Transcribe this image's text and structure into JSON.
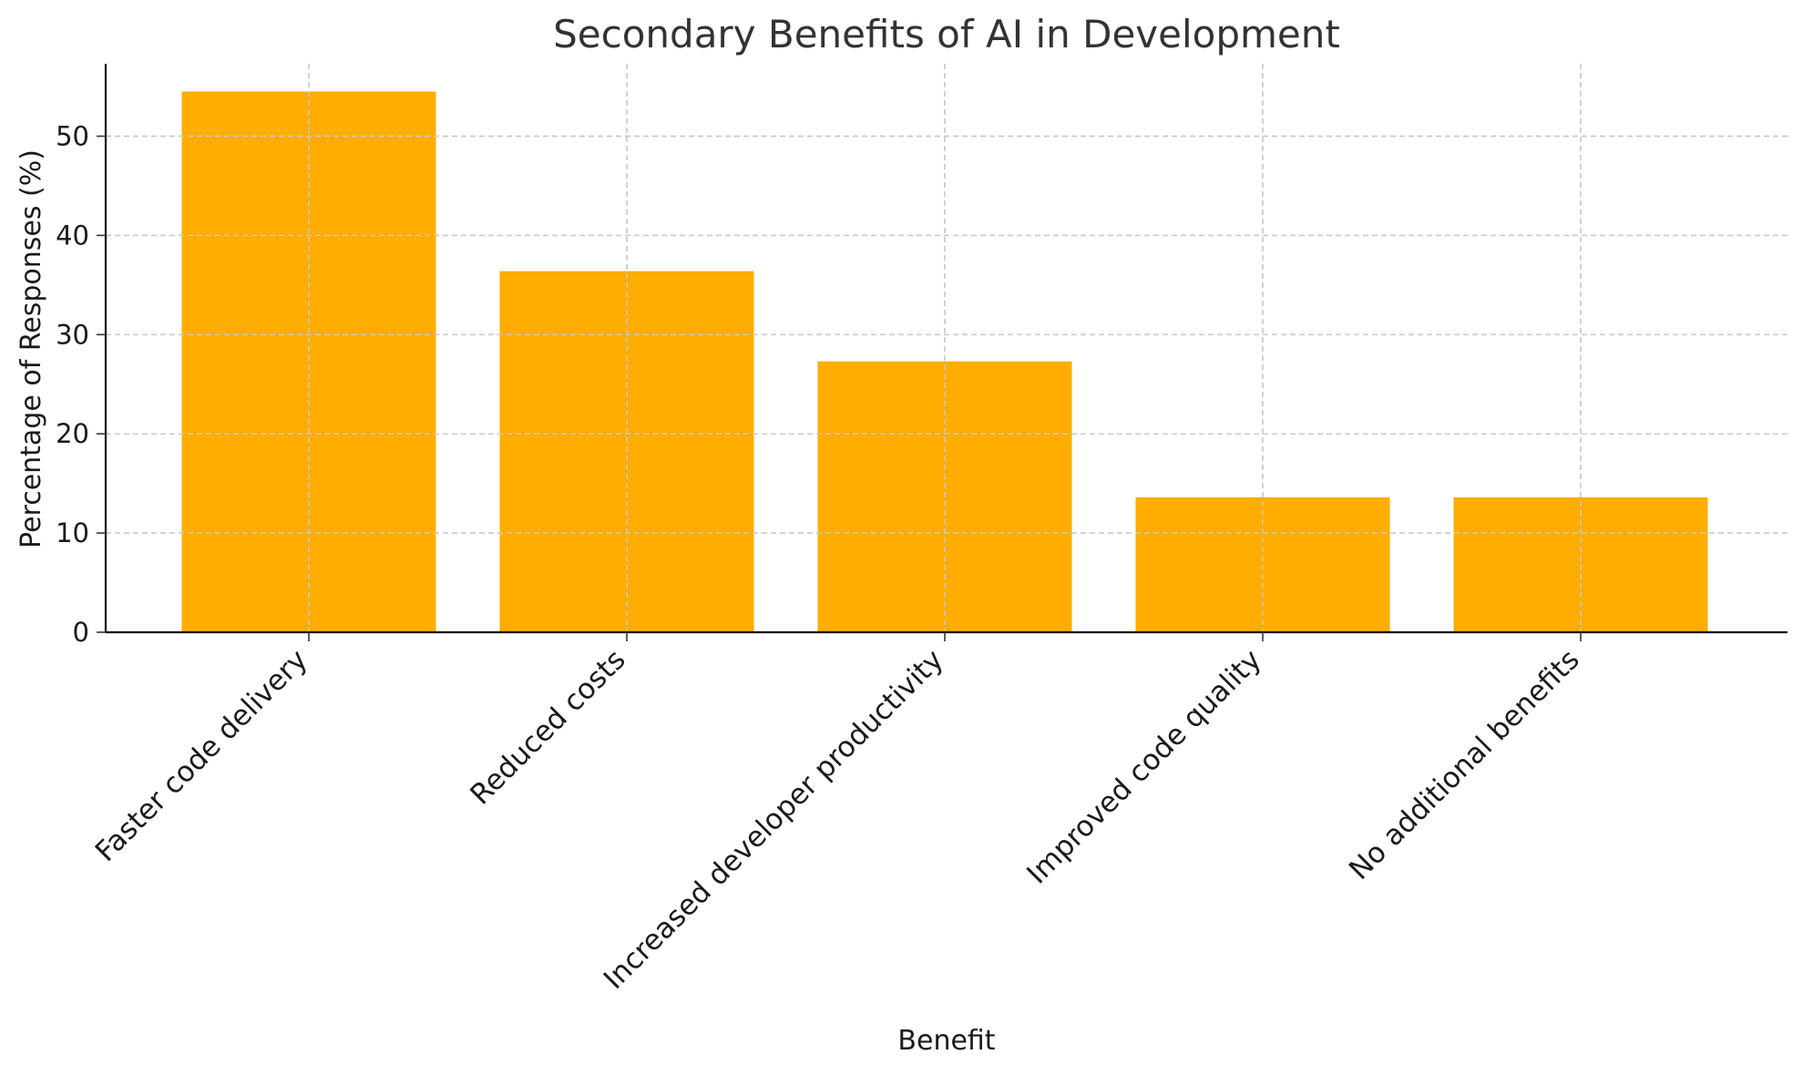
{
  "chart_data": {
    "type": "bar",
    "title": "Secondary Benefits of AI in Development",
    "xlabel": "Benefit",
    "ylabel": "Percentage of Responses (%)",
    "categories": [
      "Faster code delivery",
      "Reduced costs",
      "Increased developer productivity",
      "Improved code quality",
      "No additional benefits"
    ],
    "values": [
      54.5,
      36.4,
      27.3,
      13.6,
      13.6
    ],
    "ylim": [
      0,
      57.3
    ],
    "yticks": [
      0,
      10,
      20,
      30,
      40,
      50
    ],
    "grid": true,
    "bar_color": "#ffad00",
    "legend": "none"
  }
}
